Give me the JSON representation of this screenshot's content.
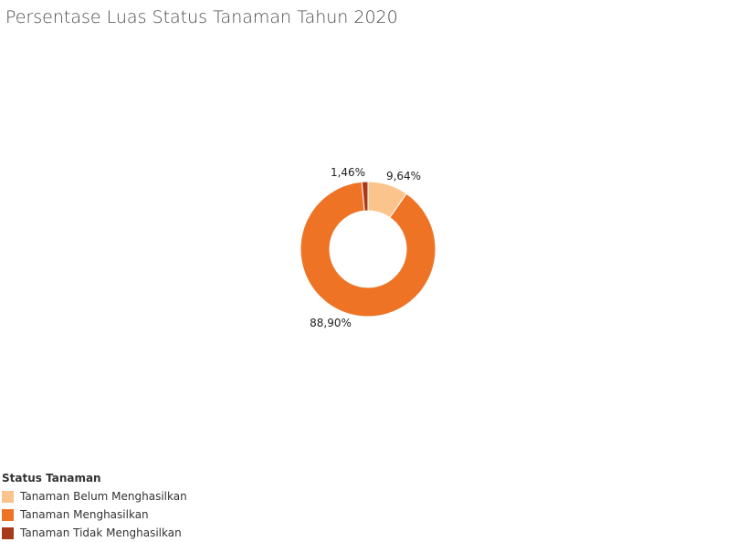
{
  "page": {
    "title": "Persentase Luas Status Tanaman Tahun 2020"
  },
  "chart_data": {
    "type": "pie",
    "variant": "donut",
    "title": "Persentase Luas Status Tanaman Tahun 2020",
    "legend_title": "Status Tanaman",
    "legend_position": "bottom-left",
    "categories": [
      "Tanaman Belum Menghasilkan",
      "Tanaman Menghasilkan",
      "Tanaman Tidak Menghasilkan"
    ],
    "values": [
      9.64,
      88.9,
      1.46
    ],
    "labels": [
      "9,64%",
      "88,90%",
      "1,46%"
    ],
    "colors": [
      "#fbc48c",
      "#ee7325",
      "#a83a1c"
    ]
  }
}
